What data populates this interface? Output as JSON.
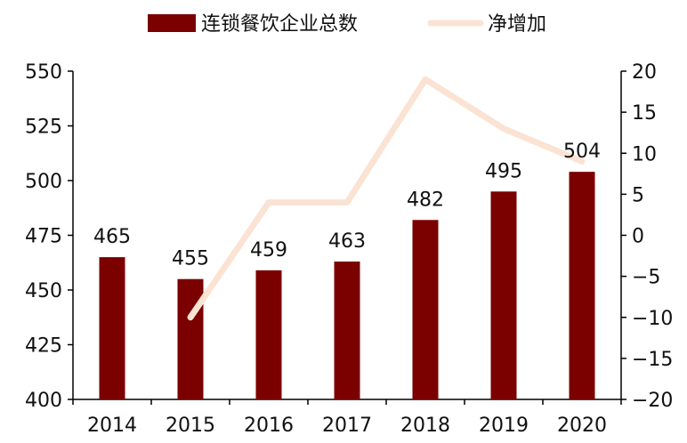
{
  "chart_data": {
    "type": "bar",
    "categories": [
      "2014",
      "2015",
      "2016",
      "2017",
      "2018",
      "2019",
      "2020"
    ],
    "series": [
      {
        "name": "连锁餐饮企业总数",
        "type": "bar",
        "axis": "left",
        "values": [
          465,
          455,
          459,
          463,
          482,
          495,
          504
        ],
        "color": "#7b0000"
      },
      {
        "name": "净增加",
        "type": "line",
        "axis": "right",
        "values": [
          null,
          -10,
          4,
          4,
          19,
          13,
          9
        ],
        "color": "#fbe3d4"
      }
    ],
    "data_labels": [
      "465",
      "455",
      "459",
      "463",
      "482",
      "495",
      "504"
    ],
    "ylim": [
      400,
      550
    ],
    "y_ticks": [
      "400",
      "425",
      "450",
      "475",
      "500",
      "525",
      "550"
    ],
    "y2lim": [
      -20,
      20
    ],
    "y2_ticks": [
      "−20",
      "−15",
      "−10",
      "−5",
      "0",
      "5",
      "10",
      "15",
      "20"
    ],
    "legend_position": "top-center",
    "grid": false
  }
}
